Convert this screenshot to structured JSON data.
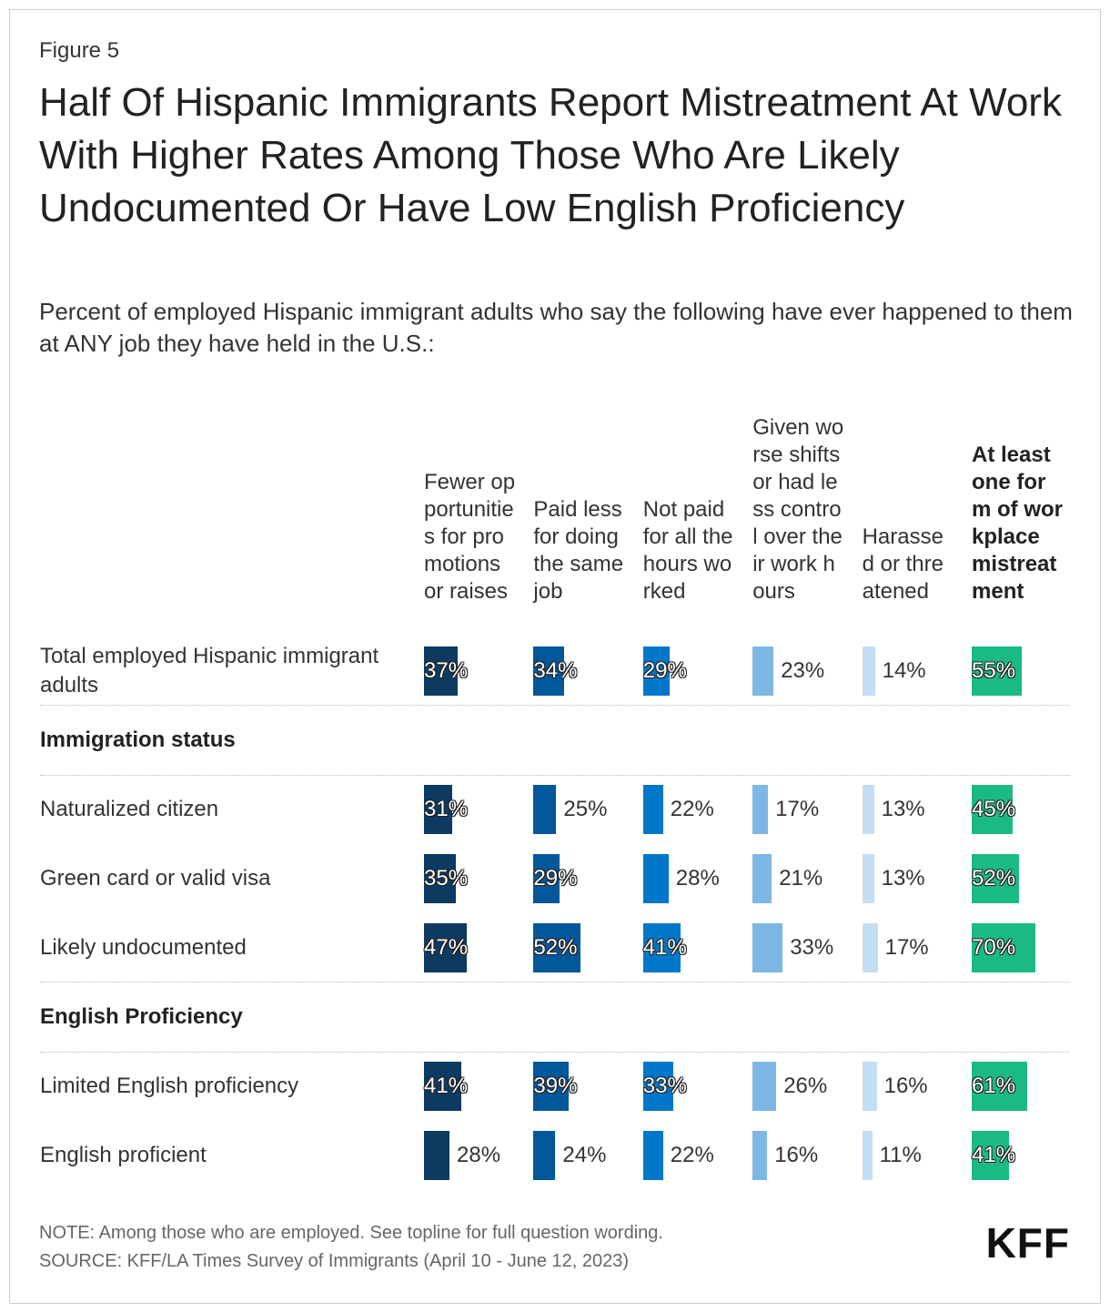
{
  "chart_data": {
    "type": "bar-table",
    "figure_label": "Figure 5",
    "title": "Half Of Hispanic Immigrants Report Mistreatment At Work With Higher Rates Among Those Who Are Likely Undocumented Or Have Low English Proficiency",
    "subtitle": "Percent of employed Hispanic immigrant adults who say the following have ever happened to them at ANY job they have held in the U.S.:",
    "categories": [
      "Total employed Hispanic immigrant adults",
      "Immigration status",
      "Naturalized citizen",
      "Green card or valid visa",
      "Likely undocumented",
      "English Proficiency",
      "Limited English proficiency",
      "English proficient"
    ],
    "series": [
      {
        "name": "Fewer opportunities for promotions or raises",
        "color": "#0d3a60",
        "values": [
          37,
          null,
          31,
          35,
          47,
          null,
          41,
          28
        ],
        "value_labels": [
          "37%",
          null,
          "31%",
          "35%",
          "47%",
          null,
          "41%",
          "28%"
        ]
      },
      {
        "name": "Paid less for doing the same job",
        "color": "#00579a",
        "values": [
          34,
          null,
          25,
          29,
          52,
          null,
          39,
          24
        ],
        "value_labels": [
          "34%",
          null,
          "25%",
          "29%",
          "52%",
          null,
          "39%",
          "24%"
        ]
      },
      {
        "name": "Not paid for all the hours worked",
        "color": "#0077c8",
        "values": [
          29,
          null,
          22,
          28,
          41,
          null,
          33,
          22
        ],
        "value_labels": [
          "29%",
          null,
          "22%",
          "28%",
          "41%",
          null,
          "33%",
          "22%"
        ]
      },
      {
        "name": "Given worse shifts or had less control over their work hours",
        "color": "#7db7e4",
        "values": [
          23,
          null,
          17,
          21,
          33,
          null,
          26,
          16
        ],
        "value_labels": [
          "23%",
          null,
          "17%",
          "21%",
          "33%",
          null,
          "26%",
          "16%"
        ]
      },
      {
        "name": "Harassed or threatened",
        "color": "#c3def2",
        "values": [
          14,
          null,
          13,
          13,
          17,
          null,
          16,
          11
        ],
        "value_labels": [
          "14%",
          null,
          "13%",
          "13%",
          "17%",
          null,
          "16%",
          "11%"
        ]
      },
      {
        "name": "At least one form of workplace mistreatment",
        "color": "#1bb985",
        "bold": true,
        "values": [
          55,
          null,
          45,
          52,
          70,
          null,
          61,
          41
        ],
        "value_labels": [
          "55%",
          null,
          "45%",
          "52%",
          "70%",
          null,
          "61%",
          "41%"
        ]
      }
    ],
    "note": "NOTE: Among those who are employed. See topline for full question wording.",
    "source": "SOURCE: KFF/LA Times Survey of Immigrants (April 10 - June 12, 2023)",
    "logo": "KFF"
  }
}
